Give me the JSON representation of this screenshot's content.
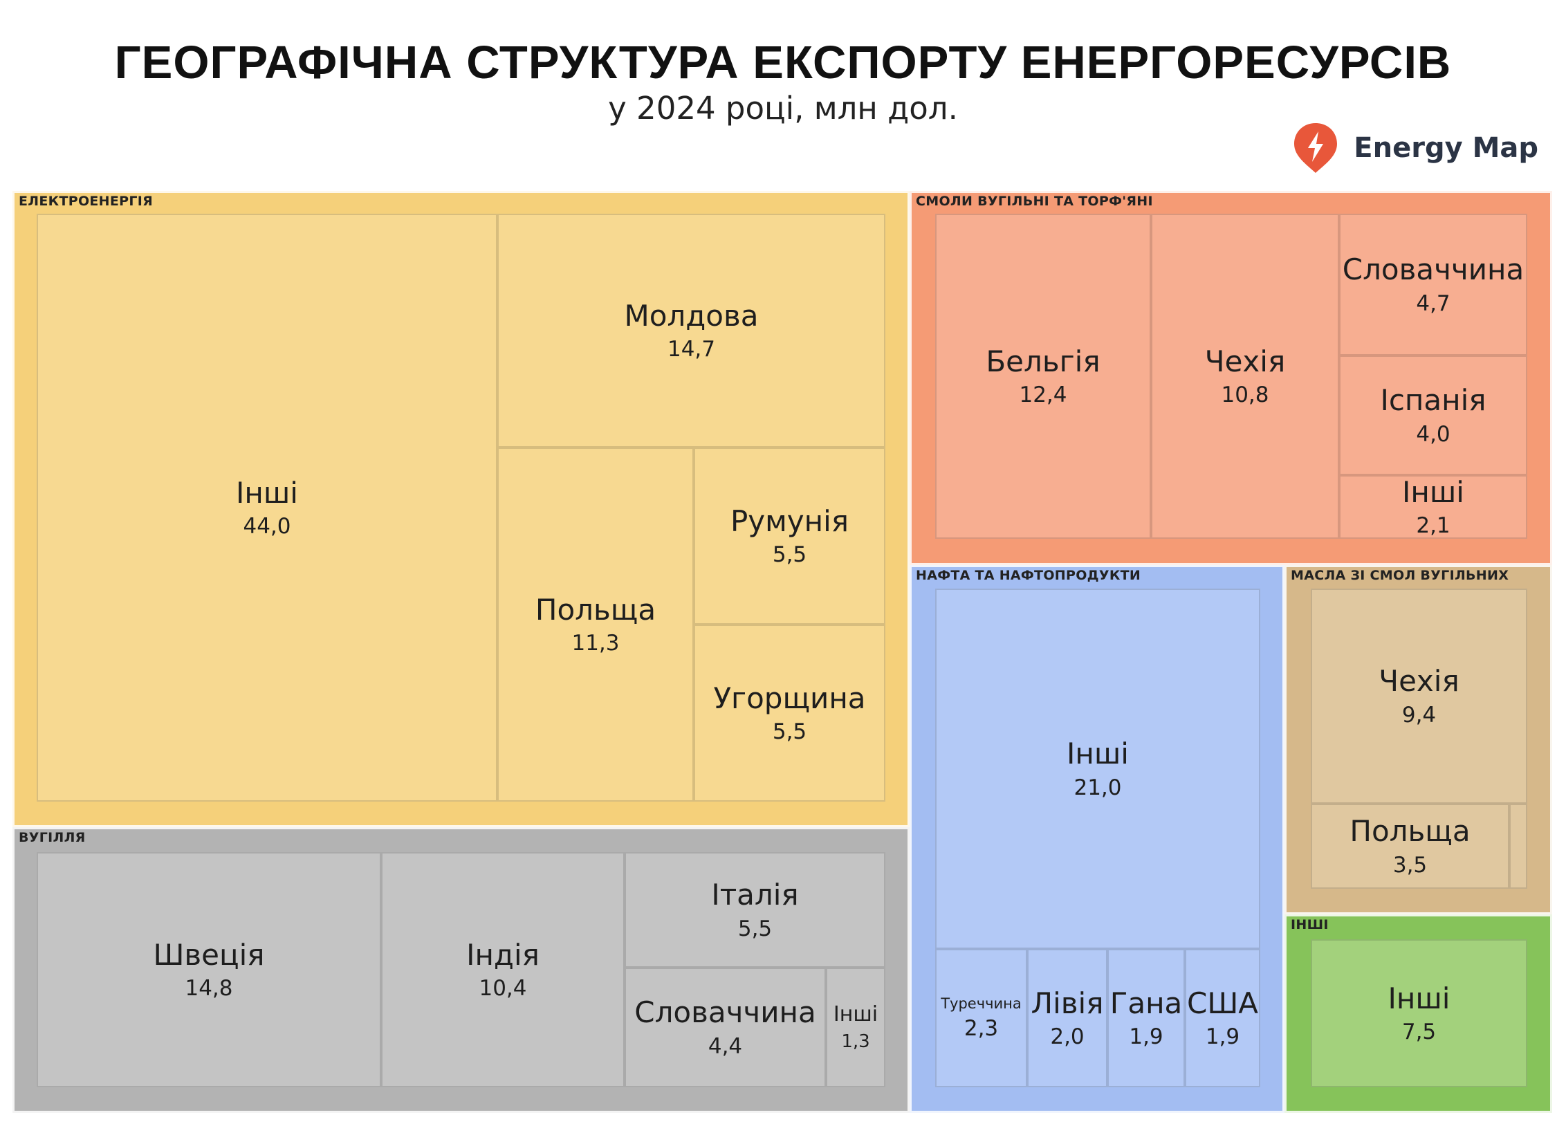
{
  "title": "ГЕОГРАФІЧНА СТРУКТУРА ЕКСПОРТУ ЕНЕРГОРЕСУРСІВ",
  "subtitle": "у 2024 році, млн дол.",
  "brand": {
    "name": "Energy Map",
    "icon": "lightning-pin-icon",
    "color": "#e8573a"
  },
  "chart_data": {
    "type": "treemap",
    "title": "ГЕОГРАФІЧНА СТРУКТУРА ЕКСПОРТУ ЕНЕРГОРЕСУРСІВ",
    "subtitle": "у 2024 році, млн дол.",
    "groups": [
      {
        "name": "ЕЛЕКТРОЕНЕРГІЯ",
        "color": "#f5d07a",
        "leaf_color": "#f7d991",
        "children": [
          {
            "name": "Інші",
            "value": 44.0,
            "label": "44,0"
          },
          {
            "name": "Молдова",
            "value": 14.7,
            "label": "14,7"
          },
          {
            "name": "Польща",
            "value": 11.3,
            "label": "11,3"
          },
          {
            "name": "Румунія",
            "value": 5.5,
            "label": "5,5"
          },
          {
            "name": "Угорщина",
            "value": 5.5,
            "label": "5,5"
          }
        ]
      },
      {
        "name": "ВУГІЛЛЯ",
        "color": "#b3b3b3",
        "leaf_color": "#c4c4c4",
        "children": [
          {
            "name": "Швеція",
            "value": 14.8,
            "label": "14,8"
          },
          {
            "name": "Індія",
            "value": 10.4,
            "label": "10,4"
          },
          {
            "name": "Італія",
            "value": 5.5,
            "label": "5,5"
          },
          {
            "name": "Словаччина",
            "value": 4.4,
            "label": "4,4"
          },
          {
            "name": "Інші",
            "value": 1.3,
            "label": "1,3"
          }
        ]
      },
      {
        "name": "СМОЛИ ВУГІЛЬНІ ТА ТОРФ'ЯНІ",
        "color": "#f59b75",
        "leaf_color": "#f7ae91",
        "children": [
          {
            "name": "Бельгія",
            "value": 12.4,
            "label": "12,4"
          },
          {
            "name": "Чехія",
            "value": 10.8,
            "label": "10,8"
          },
          {
            "name": "Словаччина",
            "value": 4.7,
            "label": "4,7"
          },
          {
            "name": "Іспанія",
            "value": 4.0,
            "label": "4,0"
          },
          {
            "name": "Інші",
            "value": 2.1,
            "label": "2,1"
          }
        ]
      },
      {
        "name": "НАФТА ТА НАФТОПРОДУКТИ",
        "color": "#a3bdf2",
        "leaf_color": "#b3c9f6",
        "children": [
          {
            "name": "Інші",
            "value": 21.0,
            "label": "21,0"
          },
          {
            "name": "Туреччина",
            "value": 2.3,
            "label": "2,3"
          },
          {
            "name": "Лівія",
            "value": 2.0,
            "label": "2,0"
          },
          {
            "name": "Гана",
            "value": 1.9,
            "label": "1,9"
          },
          {
            "name": "США",
            "value": 1.9,
            "label": "1,9"
          }
        ]
      },
      {
        "name": "МАСЛА ЗІ СМОЛ ВУГІЛЬНИХ",
        "color": "#d6b88a",
        "leaf_color": "#e0c8a0",
        "children": [
          {
            "name": "Чехія",
            "value": 9.4,
            "label": "9,4"
          },
          {
            "name": "Польща",
            "value": 3.5,
            "label": "3,5"
          },
          {
            "name": "",
            "value": 0.3,
            "label": ""
          }
        ]
      },
      {
        "name": "ІНШІ",
        "color": "#86c35a",
        "leaf_color": "#a3d17c",
        "children": [
          {
            "name": "Інші",
            "value": 7.5,
            "label": "7,5"
          }
        ]
      }
    ]
  }
}
